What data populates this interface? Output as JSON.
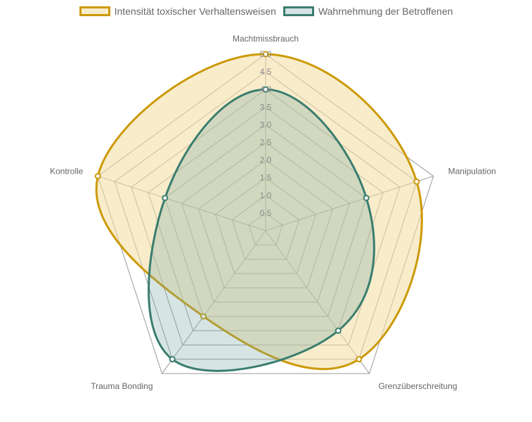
{
  "chart_data": {
    "type": "radar",
    "axes": [
      "Machtmissbrauch",
      "Manipulation",
      "Grenzüberschreitung",
      "Trauma Bonding",
      "Kontrolle"
    ],
    "r_range": [
      0,
      5
    ],
    "ticks": [
      "0.5",
      "1.0",
      "1.5",
      "2.0",
      "2.5",
      "3.0",
      "3.5",
      "4.0",
      "4.5",
      "5.0"
    ],
    "legend_position": "top",
    "series": [
      {
        "name": "Intensität toxischer Verhaltensweisen",
        "values": [
          5.0,
          4.5,
          4.5,
          3.0,
          5.0
        ],
        "stroke": "#cc9a06",
        "fill": "rgba(242, 220, 160, 0.55)"
      },
      {
        "name": "Wahrnehmung der Betroffenen",
        "values": [
          4.0,
          3.0,
          3.5,
          4.5,
          3.0
        ],
        "stroke": "#3a7d6f",
        "fill": "rgba(120, 170, 165, 0.30)"
      }
    ]
  }
}
